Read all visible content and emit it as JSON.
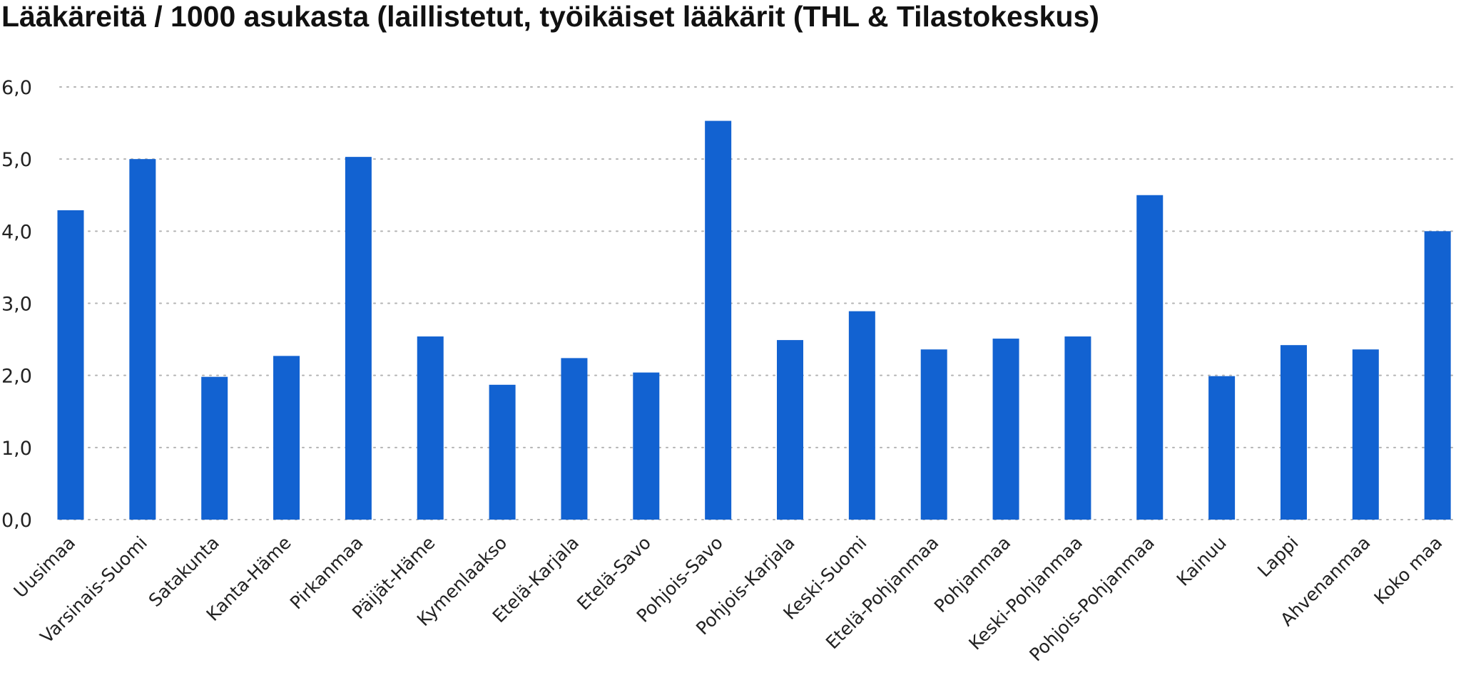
{
  "chart_data": {
    "type": "bar",
    "title": "Lääkäreitä / 1000 asukasta (laillistetut, työikäiset lääkärit (THL & Tilastokeskus)",
    "xlabel": "",
    "ylabel": "",
    "ylim": [
      0,
      6
    ],
    "yticks": [
      "0,0",
      "1,0",
      "2,0",
      "3,0",
      "4,0",
      "5,0",
      "6,0"
    ],
    "grid": true,
    "bar_color": "#1262d1",
    "categories": [
      "Uusimaa",
      "Varsinais-Suomi",
      "Satakunta",
      "Kanta-Häme",
      "Pirkanmaa",
      "Päijät-Häme",
      "Kymenlaakso",
      "Etelä-Karjala",
      "Etelä-Savo",
      "Pohjois-Savo",
      "Pohjois-Karjala",
      "Keski-Suomi",
      "Etelä-Pohjanmaa",
      "Pohjanmaa",
      "Keski-Pohjanmaa",
      "Pohjois-Pohjanmaa",
      "Kainuu",
      "Lappi",
      "Ahvenanmaa",
      "Koko maa"
    ],
    "values": [
      4.29,
      5.0,
      1.98,
      2.27,
      5.03,
      2.54,
      1.87,
      2.24,
      2.04,
      5.53,
      2.49,
      2.89,
      2.36,
      2.51,
      2.54,
      4.5,
      1.99,
      2.42,
      2.36,
      4.0
    ]
  }
}
